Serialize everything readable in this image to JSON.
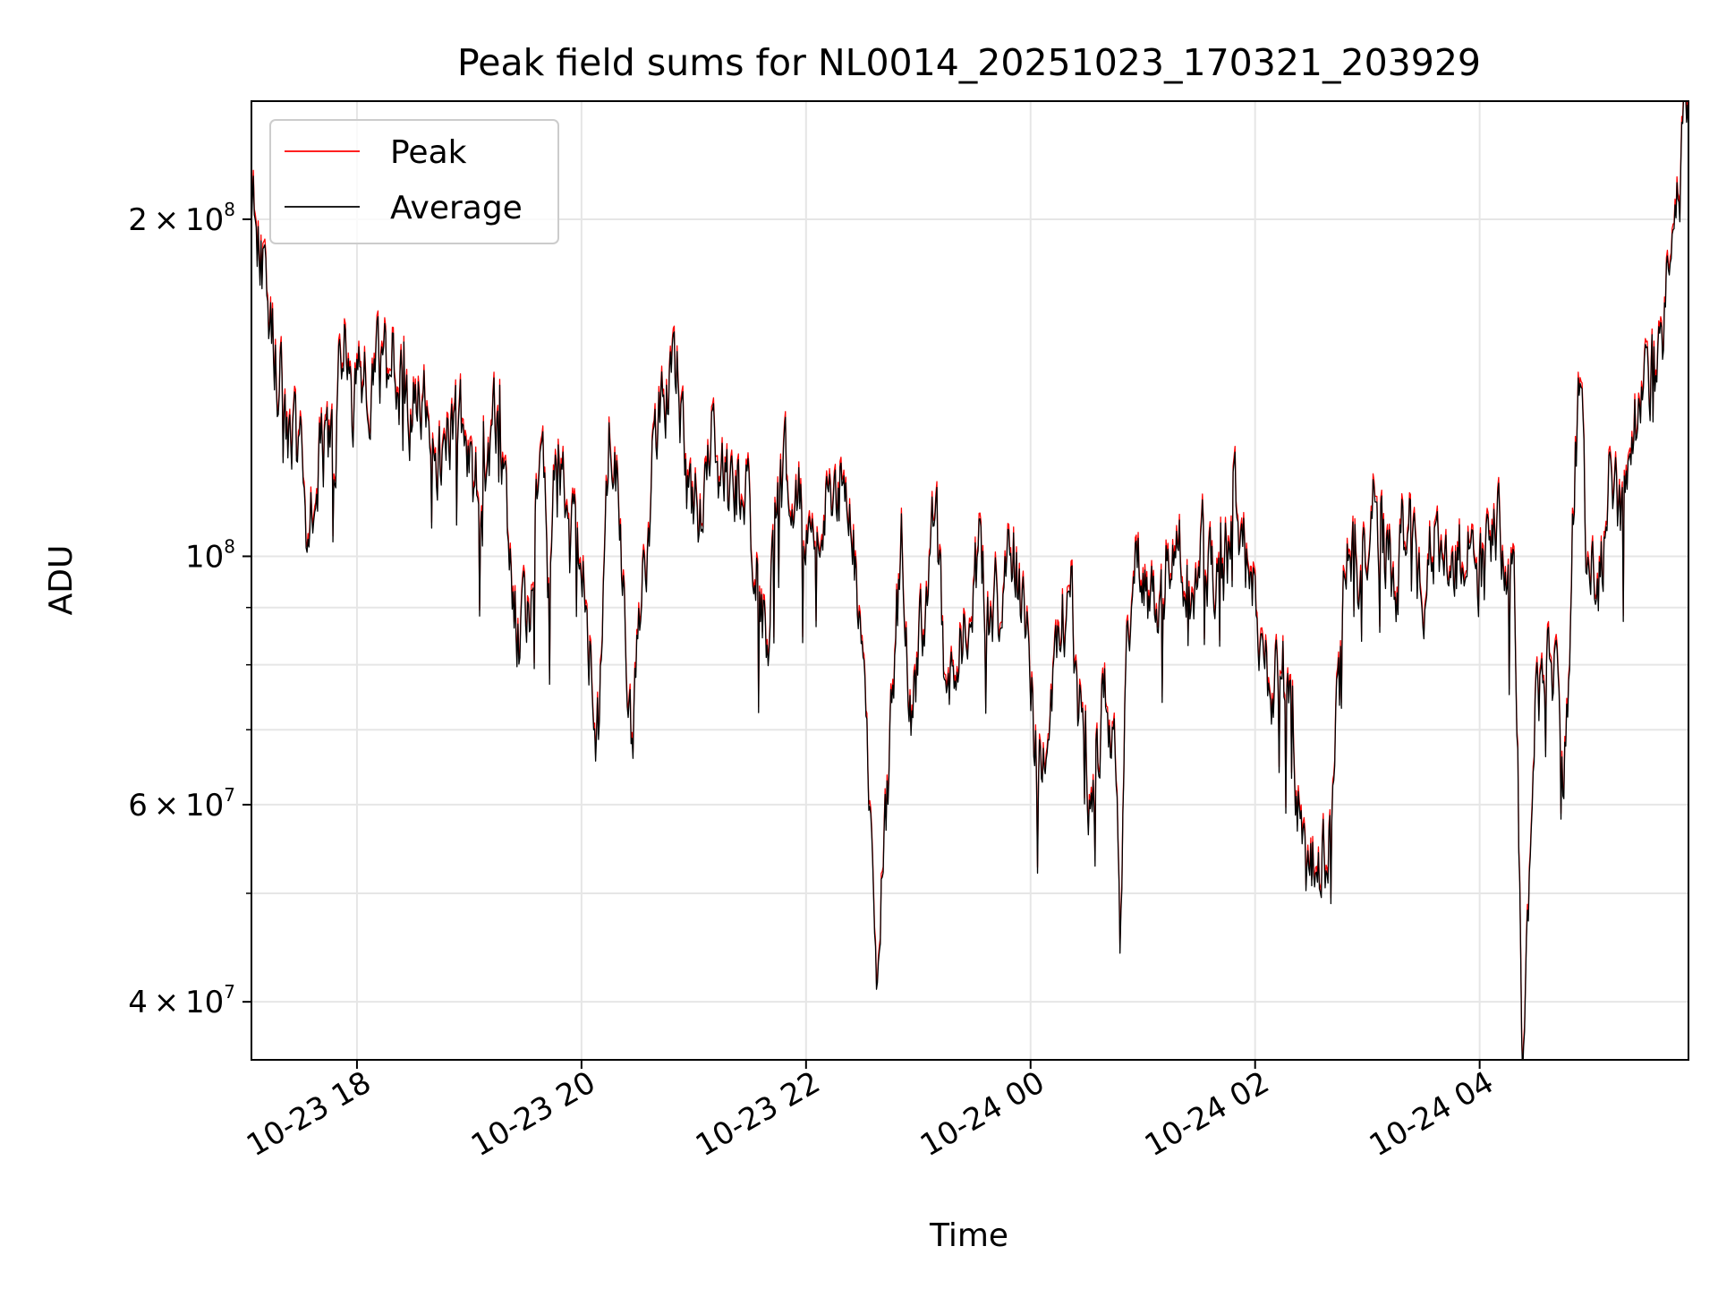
{
  "chart_data": {
    "type": "line",
    "title": "Peak field sums for NL0014_20251023_170321_203929",
    "xlabel": "Time",
    "ylabel": "ADU",
    "yscale": "log",
    "xlim_hours": [
      17.06,
      29.86
    ],
    "ylim": [
      35500000,
      255000000
    ],
    "grid": true,
    "legend_position": "top-left",
    "x_ticks": [
      {
        "hour": 18,
        "label": "10-23 18"
      },
      {
        "hour": 20,
        "label": "10-23 20"
      },
      {
        "hour": 22,
        "label": "10-23 22"
      },
      {
        "hour": 24,
        "label": "10-24 00"
      },
      {
        "hour": 26,
        "label": "10-24 02"
      },
      {
        "hour": 28,
        "label": "10-24 04"
      }
    ],
    "y_major_ticks": [
      {
        "value": 40000000,
        "mantissa": "4",
        "base": "10",
        "exponent": "7"
      },
      {
        "value": 60000000,
        "mantissa": "6",
        "base": "10",
        "exponent": "7"
      },
      {
        "value": 100000000,
        "mantissa": "",
        "base": "10",
        "exponent": "8"
      },
      {
        "value": 200000000,
        "mantissa": "2",
        "base": "10",
        "exponent": "8"
      }
    ],
    "y_minor_ticks": [
      50000000,
      70000000,
      80000000,
      90000000
    ],
    "series": [
      {
        "name": "Peak",
        "color": "#ff0000",
        "offset_factor": 1.012
      },
      {
        "name": "Average",
        "color": "#000000",
        "offset_factor": 1.0
      }
    ],
    "average_keypoints_hours_values": [
      [
        17.06,
        195000000
      ],
      [
        17.1,
        205000000
      ],
      [
        17.15,
        185000000
      ],
      [
        17.22,
        160000000
      ],
      [
        17.3,
        148000000
      ],
      [
        17.4,
        130000000
      ],
      [
        17.5,
        118000000
      ],
      [
        17.55,
        110000000
      ],
      [
        17.65,
        120000000
      ],
      [
        17.75,
        127000000
      ],
      [
        17.8,
        120000000
      ],
      [
        17.85,
        145000000
      ],
      [
        17.9,
        155000000
      ],
      [
        17.95,
        135000000
      ],
      [
        18.05,
        140000000
      ],
      [
        18.15,
        148000000
      ],
      [
        18.25,
        145000000
      ],
      [
        18.35,
        150000000
      ],
      [
        18.45,
        135000000
      ],
      [
        18.55,
        140000000
      ],
      [
        18.65,
        130000000
      ],
      [
        18.75,
        120000000
      ],
      [
        18.85,
        135000000
      ],
      [
        18.95,
        128000000
      ],
      [
        19.05,
        115000000
      ],
      [
        19.15,
        125000000
      ],
      [
        19.25,
        135000000
      ],
      [
        19.35,
        105000000
      ],
      [
        19.45,
        85000000
      ],
      [
        19.55,
        90000000
      ],
      [
        19.6,
        115000000
      ],
      [
        19.65,
        145000000
      ],
      [
        19.7,
        100000000
      ],
      [
        19.8,
        130000000
      ],
      [
        19.9,
        95000000
      ],
      [
        19.95,
        120000000
      ],
      [
        20.05,
        85000000
      ],
      [
        20.15,
        70000000
      ],
      [
        20.2,
        90000000
      ],
      [
        20.25,
        135000000
      ],
      [
        20.3,
        125000000
      ],
      [
        20.4,
        85000000
      ],
      [
        20.45,
        70000000
      ],
      [
        20.55,
        95000000
      ],
      [
        20.65,
        125000000
      ],
      [
        20.75,
        135000000
      ],
      [
        20.85,
        145000000
      ],
      [
        20.95,
        115000000
      ],
      [
        21.05,
        105000000
      ],
      [
        21.15,
        130000000
      ],
      [
        21.25,
        115000000
      ],
      [
        21.35,
        110000000
      ],
      [
        21.45,
        120000000
      ],
      [
        21.55,
        95000000
      ],
      [
        21.65,
        85000000
      ],
      [
        21.75,
        110000000
      ],
      [
        21.85,
        120000000
      ],
      [
        21.95,
        110000000
      ],
      [
        22.05,
        95000000
      ],
      [
        22.15,
        115000000
      ],
      [
        22.25,
        110000000
      ],
      [
        22.35,
        120000000
      ],
      [
        22.45,
        95000000
      ],
      [
        22.55,
        70000000
      ],
      [
        22.6,
        45000000
      ],
      [
        22.62,
        40000000
      ],
      [
        22.7,
        55000000
      ],
      [
        22.8,
        85000000
      ],
      [
        22.85,
        100000000
      ],
      [
        22.95,
        70000000
      ],
      [
        23.05,
        90000000
      ],
      [
        23.15,
        110000000
      ],
      [
        23.25,
        75000000
      ],
      [
        23.35,
        80000000
      ],
      [
        23.45,
        90000000
      ],
      [
        23.55,
        100000000
      ],
      [
        23.65,
        85000000
      ],
      [
        23.75,
        95000000
      ],
      [
        23.85,
        100000000
      ],
      [
        23.95,
        90000000
      ],
      [
        24.05,
        65000000
      ],
      [
        24.15,
        70000000
      ],
      [
        24.25,
        85000000
      ],
      [
        24.35,
        95000000
      ],
      [
        24.45,
        70000000
      ],
      [
        24.55,
        60000000
      ],
      [
        24.65,
        75000000
      ],
      [
        24.75,
        70000000
      ],
      [
        24.8,
        42000000
      ],
      [
        24.85,
        80000000
      ],
      [
        24.95,
        100000000
      ],
      [
        25.05,
        95000000
      ],
      [
        25.15,
        90000000
      ],
      [
        25.25,
        105000000
      ],
      [
        25.35,
        100000000
      ],
      [
        25.45,
        95000000
      ],
      [
        25.55,
        105000000
      ],
      [
        25.65,
        95000000
      ],
      [
        25.75,
        100000000
      ],
      [
        25.85,
        110000000
      ],
      [
        25.95,
        95000000
      ],
      [
        26.05,
        85000000
      ],
      [
        26.15,
        75000000
      ],
      [
        26.25,
        80000000
      ],
      [
        26.35,
        65000000
      ],
      [
        26.45,
        50000000
      ],
      [
        26.55,
        55000000
      ],
      [
        26.65,
        55000000
      ],
      [
        26.75,
        85000000
      ],
      [
        26.85,
        105000000
      ],
      [
        26.95,
        95000000
      ],
      [
        27.05,
        110000000
      ],
      [
        27.15,
        100000000
      ],
      [
        27.25,
        95000000
      ],
      [
        27.35,
        110000000
      ],
      [
        27.45,
        90000000
      ],
      [
        27.55,
        100000000
      ],
      [
        27.65,
        105000000
      ],
      [
        27.75,
        95000000
      ],
      [
        27.85,
        100000000
      ],
      [
        27.95,
        105000000
      ],
      [
        28.05,
        95000000
      ],
      [
        28.15,
        110000000
      ],
      [
        28.25,
        100000000
      ],
      [
        28.32,
        88000000
      ],
      [
        28.38,
        37000000
      ],
      [
        28.42,
        42000000
      ],
      [
        28.5,
        75000000
      ],
      [
        28.6,
        80000000
      ],
      [
        28.7,
        75000000
      ],
      [
        28.75,
        60000000
      ],
      [
        28.8,
        85000000
      ],
      [
        28.85,
        120000000
      ],
      [
        28.9,
        140000000
      ],
      [
        28.95,
        100000000
      ],
      [
        29.05,
        90000000
      ],
      [
        29.15,
        115000000
      ],
      [
        29.25,
        105000000
      ],
      [
        29.35,
        130000000
      ],
      [
        29.45,
        135000000
      ],
      [
        29.55,
        145000000
      ],
      [
        29.65,
        165000000
      ],
      [
        29.72,
        185000000
      ],
      [
        29.78,
        215000000
      ],
      [
        29.82,
        245000000
      ],
      [
        29.86,
        255000000
      ]
    ],
    "notes": "The data is a dense noisy time series (~1500 samples); keypoints trace the estimated envelope, Peak sits slightly above Average throughout."
  }
}
